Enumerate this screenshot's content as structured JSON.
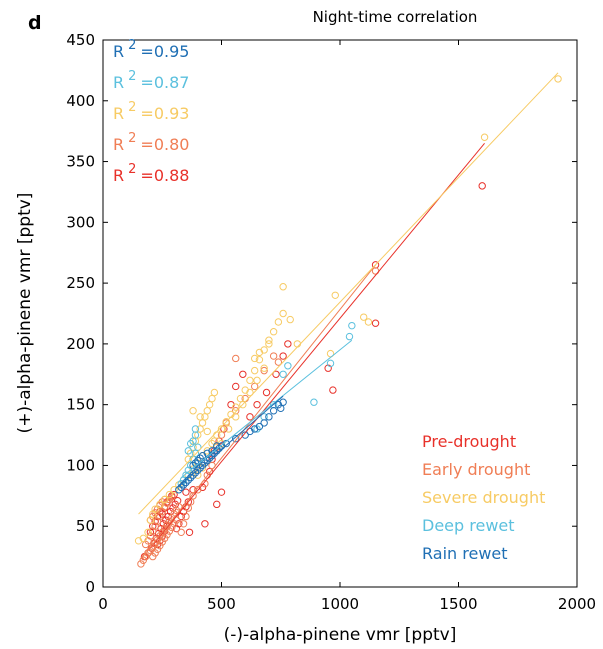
{
  "chart_data": {
    "type": "scatter",
    "panel_label": "d",
    "title": "Night-time correlation",
    "xlabel": "(-)-alpha-pinene vmr [pptv]",
    "ylabel": "(+)-alpha-pinene vmr [pptv]",
    "xlim": [
      0,
      2000
    ],
    "ylim": [
      0,
      450
    ],
    "xticks": [
      0,
      500,
      1000,
      1500,
      2000
    ],
    "yticks": [
      0,
      50,
      100,
      150,
      200,
      250,
      300,
      350,
      400,
      450
    ],
    "grid": false,
    "legend_position": "bottom-right",
    "r2_prefix": "R",
    "r2_exponent": "2",
    "series": [
      {
        "name": "Pre-drought",
        "color": "#e8312a",
        "r2": "=0.88",
        "fit": [
          [
            190,
            30
          ],
          [
            1610,
            365
          ]
        ],
        "points": [
          [
            175,
            25
          ],
          [
            190,
            28
          ],
          [
            205,
            32
          ],
          [
            215,
            36
          ],
          [
            225,
            40
          ],
          [
            235,
            44
          ],
          [
            245,
            48
          ],
          [
            255,
            52
          ],
          [
            265,
            55
          ],
          [
            275,
            58
          ],
          [
            285,
            62
          ],
          [
            295,
            65
          ],
          [
            305,
            68
          ],
          [
            315,
            71
          ],
          [
            250,
            60
          ],
          [
            260,
            65
          ],
          [
            270,
            70
          ],
          [
            280,
            72
          ],
          [
            290,
            75
          ],
          [
            300,
            76
          ],
          [
            200,
            45
          ],
          [
            210,
            50
          ],
          [
            220,
            54
          ],
          [
            230,
            58
          ],
          [
            240,
            62
          ],
          [
            310,
            48
          ],
          [
            320,
            52
          ],
          [
            330,
            58
          ],
          [
            340,
            62
          ],
          [
            350,
            66
          ],
          [
            360,
            70
          ],
          [
            230,
            35
          ],
          [
            240,
            38
          ],
          [
            250,
            42
          ],
          [
            260,
            46
          ],
          [
            270,
            50
          ],
          [
            350,
            78
          ],
          [
            380,
            80
          ],
          [
            420,
            82
          ],
          [
            450,
            95
          ],
          [
            460,
            105
          ],
          [
            470,
            112
          ],
          [
            490,
            120
          ],
          [
            510,
            130
          ],
          [
            540,
            150
          ],
          [
            560,
            165
          ],
          [
            590,
            175
          ],
          [
            620,
            140
          ],
          [
            650,
            150
          ],
          [
            690,
            160
          ],
          [
            730,
            175
          ],
          [
            760,
            190
          ],
          [
            780,
            200
          ],
          [
            950,
            180
          ],
          [
            970,
            162
          ],
          [
            1150,
            265
          ],
          [
            1150,
            217
          ],
          [
            1600,
            330
          ],
          [
            365,
            45
          ],
          [
            430,
            52
          ],
          [
            480,
            68
          ],
          [
            500,
            78
          ]
        ]
      },
      {
        "name": "Early drought",
        "color": "#f07e55",
        "r2": "=0.80",
        "fit": [
          [
            160,
            23
          ],
          [
            1150,
            265
          ]
        ],
        "points": [
          [
            160,
            19
          ],
          [
            170,
            22
          ],
          [
            180,
            25
          ],
          [
            190,
            28
          ],
          [
            200,
            30
          ],
          [
            210,
            33
          ],
          [
            220,
            36
          ],
          [
            230,
            39
          ],
          [
            240,
            42
          ],
          [
            250,
            45
          ],
          [
            260,
            48
          ],
          [
            270,
            51
          ],
          [
            280,
            54
          ],
          [
            290,
            57
          ],
          [
            300,
            60
          ],
          [
            310,
            63
          ],
          [
            320,
            66
          ],
          [
            180,
            35
          ],
          [
            190,
            38
          ],
          [
            200,
            42
          ],
          [
            210,
            46
          ],
          [
            220,
            50
          ],
          [
            230,
            54
          ],
          [
            240,
            58
          ],
          [
            250,
            62
          ],
          [
            260,
            66
          ],
          [
            270,
            69
          ],
          [
            280,
            72
          ],
          [
            290,
            74
          ],
          [
            200,
            55
          ],
          [
            210,
            58
          ],
          [
            220,
            61
          ],
          [
            230,
            64
          ],
          [
            240,
            67
          ],
          [
            250,
            70
          ],
          [
            260,
            72
          ],
          [
            210,
            25
          ],
          [
            220,
            28
          ],
          [
            230,
            31
          ],
          [
            240,
            34
          ],
          [
            250,
            37
          ],
          [
            260,
            40
          ],
          [
            270,
            43
          ],
          [
            280,
            46
          ],
          [
            290,
            49
          ],
          [
            300,
            52
          ],
          [
            310,
            55
          ],
          [
            330,
            45
          ],
          [
            340,
            52
          ],
          [
            350,
            58
          ],
          [
            360,
            65
          ],
          [
            370,
            70
          ],
          [
            380,
            75
          ],
          [
            400,
            80
          ],
          [
            430,
            85
          ],
          [
            440,
            92
          ],
          [
            460,
            100
          ],
          [
            480,
            115
          ],
          [
            500,
            125
          ],
          [
            520,
            135
          ],
          [
            560,
            145
          ],
          [
            600,
            155
          ],
          [
            640,
            165
          ],
          [
            680,
            178
          ],
          [
            720,
            190
          ],
          [
            740,
            185
          ],
          [
            560,
            188
          ],
          [
            1150,
            260
          ]
        ]
      },
      {
        "name": "Severe drought",
        "color": "#f7cb64",
        "r2": "=0.93",
        "fit": [
          [
            150,
            60
          ],
          [
            1920,
            423
          ]
        ],
        "points": [
          [
            150,
            38
          ],
          [
            170,
            40
          ],
          [
            190,
            45
          ],
          [
            200,
            55
          ],
          [
            210,
            60
          ],
          [
            220,
            64
          ],
          [
            240,
            68
          ],
          [
            260,
            72
          ],
          [
            280,
            76
          ],
          [
            300,
            80
          ],
          [
            320,
            84
          ],
          [
            340,
            88
          ],
          [
            360,
            92
          ],
          [
            380,
            97
          ],
          [
            400,
            102
          ],
          [
            420,
            108
          ],
          [
            440,
            112
          ],
          [
            460,
            118
          ],
          [
            480,
            125
          ],
          [
            500,
            130
          ],
          [
            520,
            136
          ],
          [
            540,
            142
          ],
          [
            560,
            148
          ],
          [
            580,
            155
          ],
          [
            600,
            162
          ],
          [
            620,
            170
          ],
          [
            640,
            178
          ],
          [
            660,
            187
          ],
          [
            680,
            195
          ],
          [
            700,
            203
          ],
          [
            720,
            210
          ],
          [
            740,
            218
          ],
          [
            760,
            225
          ],
          [
            360,
            105
          ],
          [
            370,
            110
          ],
          [
            380,
            115
          ],
          [
            390,
            120
          ],
          [
            400,
            125
          ],
          [
            410,
            130
          ],
          [
            420,
            135
          ],
          [
            430,
            140
          ],
          [
            440,
            145
          ],
          [
            450,
            150
          ],
          [
            460,
            155
          ],
          [
            470,
            160
          ],
          [
            380,
            145
          ],
          [
            410,
            140
          ],
          [
            440,
            128
          ],
          [
            470,
            120
          ],
          [
            500,
            118
          ],
          [
            530,
            130
          ],
          [
            560,
            140
          ],
          [
            590,
            150
          ],
          [
            620,
            160
          ],
          [
            650,
            170
          ],
          [
            680,
            180
          ],
          [
            700,
            200
          ],
          [
            760,
            247
          ],
          [
            790,
            220
          ],
          [
            820,
            200
          ],
          [
            980,
            240
          ],
          [
            960,
            192
          ],
          [
            1100,
            222
          ],
          [
            1120,
            218
          ],
          [
            1610,
            370
          ],
          [
            1920,
            418
          ],
          [
            640,
            188
          ],
          [
            660,
            193
          ],
          [
            400,
            92
          ],
          [
            420,
            98
          ],
          [
            440,
            104
          ]
        ]
      },
      {
        "name": "Deep rewet",
        "color": "#5bc0de",
        "r2": "=0.87",
        "fit": [
          [
            330,
            90
          ],
          [
            1050,
            203
          ]
        ],
        "points": [
          [
            330,
            85
          ],
          [
            340,
            88
          ],
          [
            350,
            92
          ],
          [
            360,
            96
          ],
          [
            370,
            100
          ],
          [
            380,
            105
          ],
          [
            390,
            110
          ],
          [
            400,
            115
          ],
          [
            380,
            120
          ],
          [
            390,
            125
          ],
          [
            370,
            118
          ],
          [
            360,
            112
          ],
          [
            390,
            130
          ],
          [
            650,
            130
          ],
          [
            680,
            140
          ],
          [
            720,
            150
          ],
          [
            760,
            175
          ],
          [
            780,
            182
          ],
          [
            890,
            152
          ],
          [
            960,
            184
          ],
          [
            1050,
            215
          ],
          [
            1040,
            206
          ]
        ]
      },
      {
        "name": "Rain rewet",
        "color": "#1f6fb4",
        "r2": "=0.95",
        "fit": [
          [
            320,
            83
          ],
          [
            760,
            157
          ]
        ],
        "points": [
          [
            320,
            80
          ],
          [
            330,
            82
          ],
          [
            340,
            84
          ],
          [
            350,
            86
          ],
          [
            360,
            88
          ],
          [
            370,
            90
          ],
          [
            380,
            92
          ],
          [
            390,
            94
          ],
          [
            400,
            96
          ],
          [
            410,
            98
          ],
          [
            420,
            100
          ],
          [
            430,
            102
          ],
          [
            440,
            104
          ],
          [
            450,
            106
          ],
          [
            460,
            108
          ],
          [
            470,
            110
          ],
          [
            480,
            112
          ],
          [
            490,
            114
          ],
          [
            500,
            116
          ],
          [
            380,
            100
          ],
          [
            390,
            102
          ],
          [
            400,
            104
          ],
          [
            410,
            106
          ],
          [
            420,
            108
          ],
          [
            440,
            110
          ],
          [
            460,
            112
          ],
          [
            480,
            116
          ],
          [
            520,
            118
          ],
          [
            560,
            122
          ],
          [
            600,
            125
          ],
          [
            620,
            128
          ],
          [
            640,
            130
          ],
          [
            660,
            132
          ],
          [
            680,
            135
          ],
          [
            700,
            140
          ],
          [
            720,
            145
          ],
          [
            740,
            150
          ],
          [
            750,
            147
          ],
          [
            760,
            152
          ]
        ]
      }
    ]
  }
}
